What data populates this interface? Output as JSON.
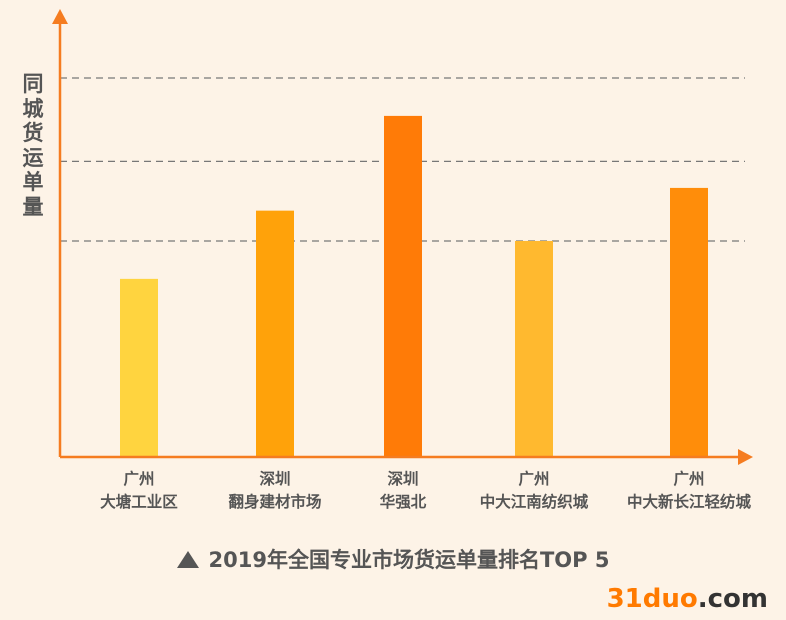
{
  "chart_data": {
    "type": "bar",
    "title": "2019年全国专业市场货运单量排名TOP 5",
    "ylabel": "同城货运单量",
    "xlabel": "",
    "ylim": [
      0,
      100
    ],
    "grid": true,
    "categories": [
      [
        "广州",
        "大塘工业区"
      ],
      [
        "深圳",
        "翻身建材市场"
      ],
      [
        "深圳",
        "华强北"
      ],
      [
        "广州",
        "中大江南纺织城"
      ],
      [
        "广州",
        "中大新长江轻纺城"
      ]
    ],
    "values": [
      47,
      65,
      90,
      57,
      71
    ],
    "gridlines": [
      57,
      78,
      100
    ],
    "colors": [
      "#ffd43f",
      "#ffa20a",
      "#ff7b07",
      "#ffb92f",
      "#ff8d0a"
    ],
    "axis_color": "#f57c20"
  },
  "caption": "2019年全国专业市场货运单量排名TOP 5",
  "watermark": {
    "number": "31duo",
    "suffix": ".com"
  }
}
